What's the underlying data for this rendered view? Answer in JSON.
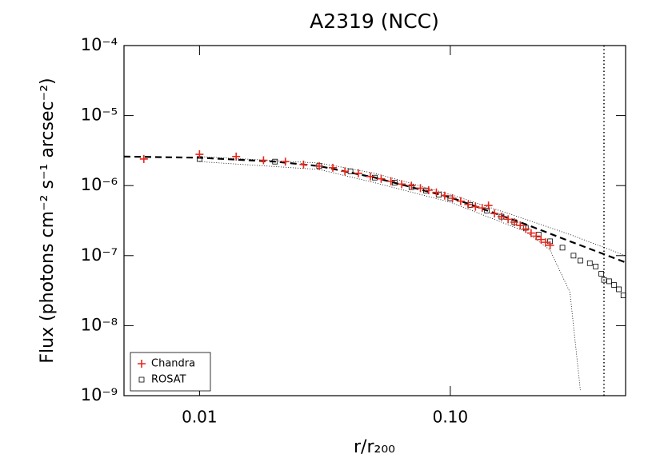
{
  "chart_data": {
    "type": "scatter",
    "title": "A2319 (NCC)",
    "x_label": "r/r₂₀₀",
    "y_label": "Flux (photons cm⁻² s⁻¹ arcsec⁻²)",
    "xscale": "log",
    "yscale": "log",
    "xlim": [
      0.005,
      0.5
    ],
    "ylim": [
      1e-09,
      0.0001
    ],
    "xticks": [
      0.01,
      {
        "value": 0.1,
        "label": "0.10"
      }
    ],
    "yticks": [
      {
        "value": 1e-09,
        "label": "10⁻⁹"
      },
      {
        "value": 1e-08,
        "label": "10⁻⁸"
      },
      {
        "value": 1e-07,
        "label": "10⁻⁷"
      },
      {
        "value": 1e-06,
        "label": "10⁻⁶"
      },
      {
        "value": 1e-05,
        "label": "10⁻⁵"
      },
      {
        "value": 0.0001,
        "label": "10⁻⁴"
      }
    ],
    "legend": "lower left",
    "series": [
      {
        "name": "Chandra",
        "color": "#e8261b",
        "marker": "plus",
        "x": [
          0.006,
          0.01,
          0.014,
          0.018,
          0.022,
          0.026,
          0.03,
          0.034,
          0.038,
          0.043,
          0.048,
          0.053,
          0.058,
          0.064,
          0.07,
          0.076,
          0.082,
          0.088,
          0.095,
          0.102,
          0.11,
          0.118,
          0.126,
          0.134,
          0.142,
          0.15,
          0.16,
          0.17,
          0.18,
          0.19,
          0.2,
          0.21,
          0.22,
          0.23,
          0.24,
          0.25
        ],
        "values": [
          2.4e-06,
          2.8e-06,
          2.6e-06,
          2.3e-06,
          2.2e-06,
          2e-06,
          1.9e-06,
          1.8e-06,
          1.6e-06,
          1.5e-06,
          1.35e-06,
          1.25e-06,
          1.15e-06,
          1.05e-06,
          1e-06,
          9.2e-07,
          8.6e-07,
          8e-07,
          7.2e-07,
          6.6e-07,
          6e-07,
          5.4e-07,
          5e-07,
          4.8e-07,
          5.2e-07,
          4e-07,
          3.6e-07,
          3.3e-07,
          3e-07,
          2.7e-07,
          2.4e-07,
          2.1e-07,
          1.9e-07,
          1.7e-07,
          1.55e-07,
          1.4e-07
        ]
      },
      {
        "name": "ROSAT",
        "color": "#000000",
        "marker": "square",
        "x": [
          0.01,
          0.02,
          0.03,
          0.04,
          0.05,
          0.06,
          0.07,
          0.08,
          0.09,
          0.1,
          0.12,
          0.14,
          0.16,
          0.18,
          0.2,
          0.225,
          0.25,
          0.28,
          0.31,
          0.33,
          0.36,
          0.38,
          0.4,
          0.41,
          0.43,
          0.45,
          0.47,
          0.49
        ],
        "values": [
          2.4e-06,
          2.2e-06,
          1.9e-06,
          1.6e-06,
          1.3e-06,
          1.1e-06,
          9.5e-07,
          8.5e-07,
          7.4e-07,
          6.6e-07,
          5.3e-07,
          4.4e-07,
          3.6e-07,
          3e-07,
          2.5e-07,
          2e-07,
          1.6e-07,
          1.3e-07,
          1e-07,
          8.5e-08,
          7.8e-08,
          7e-08,
          5.5e-08,
          4.5e-08,
          4.3e-08,
          3.8e-08,
          3.3e-08,
          2.7e-08
        ]
      }
    ],
    "lines": [
      {
        "style": "dashed",
        "x": [
          0.005,
          0.01,
          0.02,
          0.03,
          0.05,
          0.1,
          0.2,
          0.3,
          0.5
        ],
        "values": [
          2.6e-06,
          2.5e-06,
          2.2e-06,
          1.9e-06,
          1.3e-06,
          6.8e-07,
          2.8e-07,
          1.6e-07,
          8e-08
        ]
      },
      {
        "style": "dotted",
        "x": [
          0.01,
          0.03,
          0.05,
          0.1,
          0.2,
          0.3,
          0.5
        ],
        "values": [
          2.6e-06,
          2.1e-06,
          1.5e-06,
          7.5e-07,
          3.3e-07,
          2e-07,
          1e-07
        ]
      },
      {
        "style": "dotted",
        "x": [
          0.01,
          0.03,
          0.05,
          0.1,
          0.2,
          0.25,
          0.3,
          0.33
        ],
        "values": [
          2.2e-06,
          1.7e-06,
          1.1e-06,
          5.8e-07,
          2.2e-07,
          1.2e-07,
          3e-08,
          1.2e-09
        ]
      }
    ],
    "vline": 0.41
  }
}
